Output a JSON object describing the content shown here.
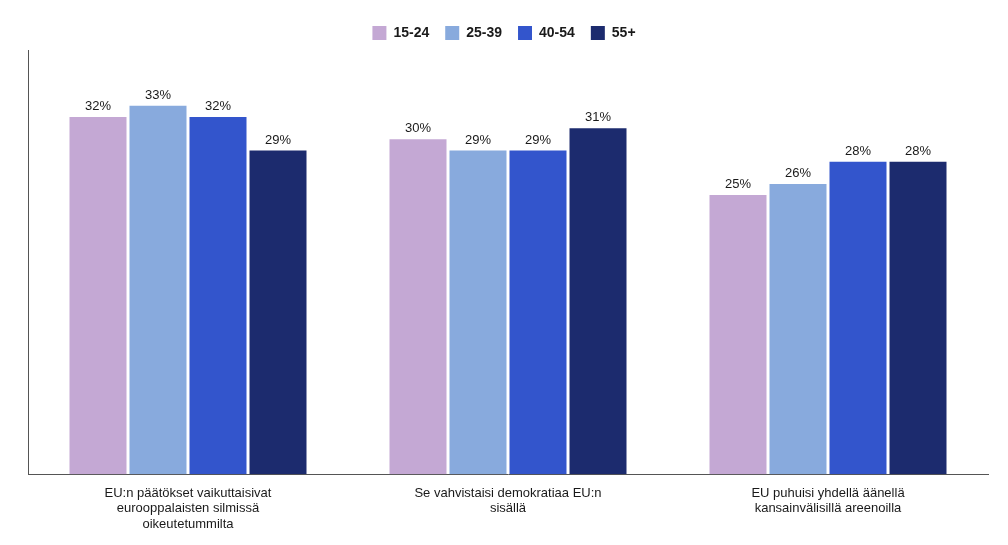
{
  "chart_data": {
    "type": "bar",
    "categories": [
      "EU:n päätökset vaikuttaisivat\neurooppalaisten silmissä\noikeutetummilta",
      "Se vahvistaisi demokratiaa EU:n\nsisällä",
      "EU puhuisi yhdellä äänellä\nkansainvälisillä areenoilla"
    ],
    "series": [
      {
        "name": "15-24",
        "color": "#C4A8D4",
        "values": [
          32,
          30,
          25
        ],
        "value_labels": [
          "32%",
          "30%",
          "25%"
        ]
      },
      {
        "name": "25-39",
        "color": "#88AADD",
        "values": [
          33,
          29,
          26
        ],
        "value_labels": [
          "33%",
          "29%",
          "26%"
        ]
      },
      {
        "name": "40-54",
        "color": "#3355CC",
        "values": [
          32,
          29,
          28
        ],
        "value_labels": [
          "32%",
          "29%",
          "28%"
        ]
      },
      {
        "name": "55+",
        "color": "#1C2B6E",
        "values": [
          29,
          31,
          28
        ],
        "value_labels": [
          "29%",
          "31%",
          "28%"
        ]
      }
    ],
    "ylim": [
      0,
      38
    ],
    "grid": false,
    "legend": "top",
    "data_labels": true,
    "tick_labels": "x"
  }
}
